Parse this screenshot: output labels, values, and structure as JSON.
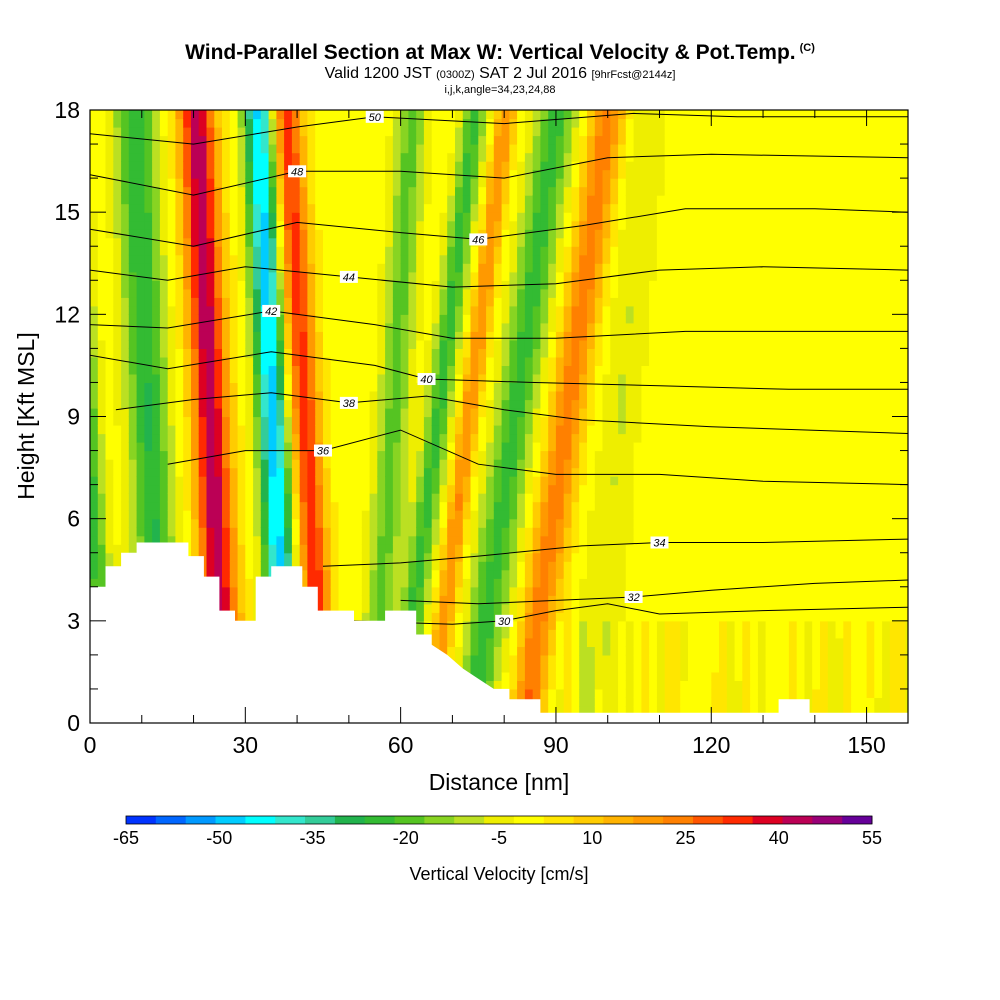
{
  "title": {
    "main": "Wind-Parallel Section at Max W: Vertical Velocity & Pot.Temp.",
    "copyright": "(C)",
    "sub_valid": "Valid 1200 JST",
    "sub_utc": "(0300Z)",
    "sub_date": "SAT 2 Jul 2016",
    "sub_fcst": "[9hrFcst@2144z]",
    "params": "i,j,k,angle=34,23,24,88"
  },
  "chart_data": {
    "type": "heatmap",
    "xlabel": "Distance [nm]",
    "ylabel": "Height [Kft MSL]",
    "xlim": [
      0,
      158
    ],
    "ylim": [
      0,
      18
    ],
    "x_ticks": [
      0,
      30,
      60,
      90,
      120,
      150
    ],
    "y_ticks": [
      0,
      3,
      6,
      9,
      12,
      15,
      18
    ],
    "colorbar": {
      "label": "Vertical Velocity [cm/s]",
      "tick_labels": [
        -65,
        -50,
        -35,
        -20,
        -5,
        10,
        25,
        40,
        55
      ],
      "levels": [
        -65,
        -60,
        -55,
        -50,
        -45,
        -40,
        -35,
        -30,
        -25,
        -20,
        -15,
        -10,
        -5,
        0,
        5,
        10,
        15,
        20,
        25,
        30,
        35,
        40,
        45,
        50,
        55
      ],
      "colors": [
        "#0033ff",
        "#0066ff",
        "#0099ff",
        "#00ccff",
        "#00ffff",
        "#33e6cc",
        "#33cc99",
        "#22b34d",
        "#33bb33",
        "#55c422",
        "#88d422",
        "#bbe022",
        "#eeee00",
        "#ffff00",
        "#ffe600",
        "#ffcc00",
        "#ffb300",
        "#ff9900",
        "#ff8000",
        "#ff5500",
        "#ff2a00",
        "#dd0022",
        "#bb0055",
        "#990077",
        "#660099"
      ]
    },
    "theta_contours": [
      {
        "label": "30",
        "points": [
          [
            50,
            3.0
          ],
          [
            70,
            2.9
          ],
          [
            80,
            3.0
          ],
          [
            90,
            3.3
          ],
          [
            100,
            3.5
          ],
          [
            110,
            3.2
          ],
          [
            130,
            3.3
          ],
          [
            158,
            3.4
          ]
        ]
      },
      {
        "label": "32",
        "points": [
          [
            60,
            3.6
          ],
          [
            75,
            3.5
          ],
          [
            90,
            3.6
          ],
          [
            105,
            3.7
          ],
          [
            120,
            3.9
          ],
          [
            140,
            4.1
          ],
          [
            158,
            4.2
          ]
        ]
      },
      {
        "label": "34",
        "points": [
          [
            45,
            4.6
          ],
          [
            60,
            4.7
          ],
          [
            75,
            4.9
          ],
          [
            95,
            5.2
          ],
          [
            110,
            5.3
          ],
          [
            130,
            5.3
          ],
          [
            158,
            5.4
          ]
        ]
      },
      {
        "label": "36",
        "points": [
          [
            15,
            7.6
          ],
          [
            30,
            8.0
          ],
          [
            45,
            8.0
          ],
          [
            60,
            8.6
          ],
          [
            75,
            7.6
          ],
          [
            90,
            7.3
          ],
          [
            110,
            7.3
          ],
          [
            130,
            7.1
          ],
          [
            158,
            7.0
          ]
        ]
      },
      {
        "label": "38",
        "points": [
          [
            5,
            9.2
          ],
          [
            20,
            9.5
          ],
          [
            35,
            9.7
          ],
          [
            50,
            9.4
          ],
          [
            65,
            9.6
          ],
          [
            80,
            9.2
          ],
          [
            95,
            8.9
          ],
          [
            120,
            8.7
          ],
          [
            158,
            8.5
          ]
        ]
      },
      {
        "label": "40",
        "points": [
          [
            0,
            10.8
          ],
          [
            15,
            10.4
          ],
          [
            35,
            10.9
          ],
          [
            55,
            10.5
          ],
          [
            65,
            10.1
          ],
          [
            85,
            10.0
          ],
          [
            110,
            9.9
          ],
          [
            135,
            9.8
          ],
          [
            158,
            9.8
          ]
        ]
      },
      {
        "label": "42",
        "points": [
          [
            0,
            11.7
          ],
          [
            15,
            11.6
          ],
          [
            35,
            12.1
          ],
          [
            55,
            11.7
          ],
          [
            70,
            11.3
          ],
          [
            90,
            11.3
          ],
          [
            115,
            11.5
          ],
          [
            135,
            11.5
          ],
          [
            158,
            11.5
          ]
        ]
      },
      {
        "label": "44",
        "points": [
          [
            0,
            13.3
          ],
          [
            15,
            13.0
          ],
          [
            30,
            13.4
          ],
          [
            50,
            13.1
          ],
          [
            70,
            12.8
          ],
          [
            90,
            12.9
          ],
          [
            110,
            13.3
          ],
          [
            130,
            13.4
          ],
          [
            158,
            13.3
          ]
        ]
      },
      {
        "label": "46",
        "points": [
          [
            0,
            14.5
          ],
          [
            20,
            14.0
          ],
          [
            40,
            14.7
          ],
          [
            60,
            14.4
          ],
          [
            75,
            14.2
          ],
          [
            95,
            14.6
          ],
          [
            115,
            15.1
          ],
          [
            140,
            15.1
          ],
          [
            158,
            15.0
          ]
        ]
      },
      {
        "label": "48",
        "points": [
          [
            0,
            16.1
          ],
          [
            20,
            15.5
          ],
          [
            40,
            16.2
          ],
          [
            60,
            16.2
          ],
          [
            80,
            16.0
          ],
          [
            100,
            16.6
          ],
          [
            120,
            16.7
          ],
          [
            158,
            16.6
          ]
        ]
      },
      {
        "label": "50",
        "points": [
          [
            0,
            17.3
          ],
          [
            20,
            17.0
          ],
          [
            40,
            17.5
          ],
          [
            55,
            17.8
          ],
          [
            80,
            17.6
          ],
          [
            105,
            17.9
          ],
          [
            125,
            17.8
          ],
          [
            158,
            17.8
          ]
        ]
      }
    ],
    "terrain": [
      [
        0,
        4.0
      ],
      [
        3,
        4.0
      ],
      [
        3,
        4.6
      ],
      [
        6,
        4.6
      ],
      [
        6,
        5.0
      ],
      [
        9,
        5.0
      ],
      [
        9,
        5.3
      ],
      [
        19,
        5.3
      ],
      [
        19,
        4.9
      ],
      [
        22,
        4.9
      ],
      [
        22,
        4.3
      ],
      [
        25,
        4.3
      ],
      [
        25,
        3.3
      ],
      [
        28,
        3.3
      ],
      [
        28,
        3.0
      ],
      [
        32,
        3.0
      ],
      [
        32,
        4.3
      ],
      [
        35,
        4.3
      ],
      [
        35,
        4.6
      ],
      [
        41,
        4.6
      ],
      [
        41,
        4.0
      ],
      [
        44,
        4.0
      ],
      [
        44,
        3.3
      ],
      [
        51,
        3.3
      ],
      [
        51,
        3.0
      ],
      [
        57,
        3.0
      ],
      [
        57,
        3.3
      ],
      [
        63,
        3.3
      ],
      [
        63,
        2.6
      ],
      [
        66,
        2.6
      ],
      [
        66,
        2.3
      ],
      [
        69,
        2.0
      ],
      [
        72,
        1.6
      ],
      [
        75,
        1.3
      ],
      [
        78,
        1.0
      ],
      [
        81,
        1.0
      ],
      [
        81,
        0.7
      ],
      [
        87,
        0.7
      ],
      [
        87,
        0.3
      ],
      [
        133,
        0.3
      ],
      [
        133,
        0.7
      ],
      [
        139,
        0.7
      ],
      [
        139,
        0.3
      ],
      [
        158,
        0.3
      ]
    ]
  }
}
